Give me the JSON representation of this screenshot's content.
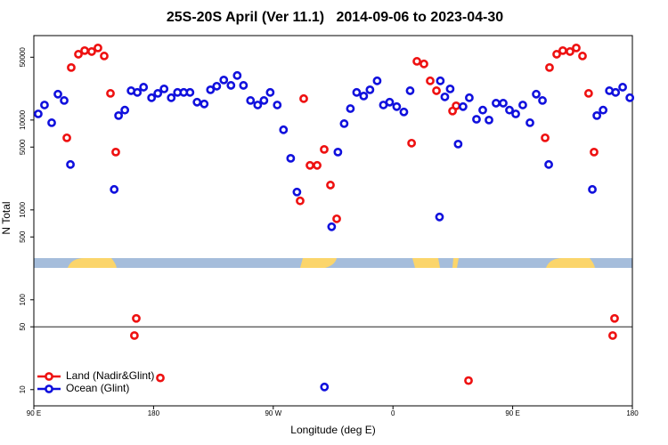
{
  "chart_data": {
    "type": "scatter",
    "title": "25S-20S April (Ver 11.1)   2014-09-06 to 2023-04-30",
    "xlabel": "Longitude (deg E)",
    "ylabel": "N Total",
    "xlim": [
      90,
      540
    ],
    "ylim": [
      6.6,
      87000
    ],
    "yscale": "log",
    "xticks": [
      {
        "value": 90,
        "label": "90 E"
      },
      180,
      {
        "value": 270,
        "label": "90 W"
      },
      {
        "value": 360,
        "label": "0"
      },
      {
        "value": 450,
        "label": "90 E"
      },
      {
        "value": 540,
        "label": "180"
      }
    ],
    "yticks": [
      10,
      50,
      100,
      500,
      1000,
      5000,
      10000,
      50000
    ],
    "hline": 50,
    "legend": "lower left",
    "series": [
      {
        "name": "Land (Nadir&Glint)",
        "color": "#ee1111",
        "x": [
          114.8,
          118.1,
          123.5,
          128.2,
          133.5,
          138.2,
          142.9,
          147.6,
          151.6,
          165.6,
          167,
          185.1,
          290.2,
          292.9,
          297.6,
          303,
          308.3,
          313,
          317.7,
          374,
          378,
          383.3,
          388,
          392.7,
          404.8,
          407.5,
          416.8,
          474.4,
          477.7,
          483.1,
          487.7,
          493.1,
          497.8,
          502.5,
          507.1,
          511.2,
          525.2,
          526.6
        ],
        "values": [
          6340,
          38400,
          54000,
          59200,
          57800,
          63400,
          51600,
          19800,
          4400,
          40,
          62,
          13.5,
          1260,
          17300,
          3130,
          3130,
          4710,
          1890,
          796,
          5530,
          45000,
          42100,
          27300,
          21200,
          12600,
          14400,
          12.6,
          6340,
          38400,
          54000,
          59200,
          57800,
          63400,
          51600,
          19800,
          4400,
          40,
          62
        ]
      },
      {
        "name": "Ocean (Glint)",
        "color": "#1010dd",
        "x": [
          93.3,
          98,
          103.4,
          108.1,
          112.8,
          117.5,
          150.4,
          153.7,
          158.4,
          163.1,
          167.8,
          172.5,
          178.5,
          183.2,
          187.9,
          193.3,
          198,
          202.7,
          207.4,
          212.7,
          218.1,
          222.8,
          227.5,
          232.8,
          238.2,
          242.9,
          247.6,
          252.9,
          258.3,
          263,
          267.7,
          273,
          277.7,
          283.1,
          287.8,
          308.5,
          313.9,
          318.6,
          323.3,
          328,
          332.7,
          338,
          342.7,
          348.1,
          352.8,
          357.5,
          362.8,
          368.2,
          372.9,
          395,
          395.6,
          399,
          403,
          409,
          412.7,
          417.4,
          422.8,
          427.5,
          432.2,
          437.5,
          442.9,
          447.6,
          452.3,
          457.6,
          463,
          467.7,
          472.4,
          477.1,
          509.9,
          513.3,
          518,
          522.7,
          527.4,
          532.7,
          538.1
        ],
        "values": [
          11700,
          14700,
          9330,
          19400,
          16500,
          3200,
          1690,
          11200,
          12900,
          21200,
          20300,
          23200,
          17700,
          19800,
          22200,
          17700,
          20300,
          20300,
          20300,
          15800,
          15100,
          21700,
          23800,
          27900,
          24300,
          31300,
          24300,
          16500,
          14700,
          16500,
          20300,
          14700,
          7790,
          3750,
          1580,
          10.7,
          649,
          4400,
          9120,
          13400,
          20300,
          18500,
          21700,
          27300,
          14700,
          15800,
          14100,
          12300,
          21200,
          834,
          27300,
          18100,
          22200,
          5400,
          14100,
          17700,
          10200,
          12900,
          10000,
          15400,
          15400,
          12900,
          11700,
          14700,
          9330,
          19400,
          16500,
          3200,
          1690,
          11200,
          12900,
          21200,
          20300,
          23200,
          17700
        ]
      }
    ]
  }
}
